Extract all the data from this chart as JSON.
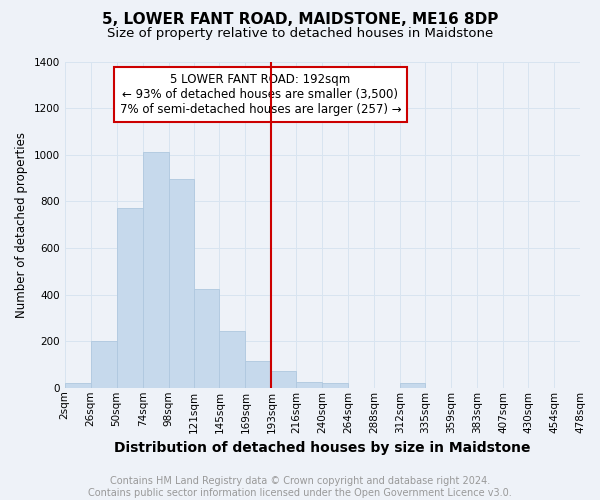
{
  "title": "5, LOWER FANT ROAD, MAIDSTONE, ME16 8DP",
  "subtitle": "Size of property relative to detached houses in Maidstone",
  "xlabel": "Distribution of detached houses by size in Maidstone",
  "ylabel": "Number of detached properties",
  "bin_edges": [
    2,
    26,
    50,
    74,
    98,
    121,
    145,
    169,
    193,
    216,
    240,
    264,
    288,
    312,
    335,
    359,
    383,
    407,
    430,
    454,
    478
  ],
  "bin_labels": [
    "2sqm",
    "26sqm",
    "50sqm",
    "74sqm",
    "98sqm",
    "121sqm",
    "145sqm",
    "169sqm",
    "193sqm",
    "216sqm",
    "240sqm",
    "264sqm",
    "288sqm",
    "312sqm",
    "335sqm",
    "359sqm",
    "383sqm",
    "407sqm",
    "430sqm",
    "454sqm",
    "478sqm"
  ],
  "values": [
    20,
    200,
    770,
    1010,
    895,
    425,
    245,
    115,
    70,
    25,
    20,
    0,
    0,
    20,
    0,
    0,
    0,
    0,
    0,
    0
  ],
  "bar_color": "#c6d9ec",
  "bar_edge_color": "#afc8df",
  "highlight_line_value": 193,
  "highlight_line_color": "#cc0000",
  "annotation_box_text": "5 LOWER FANT ROAD: 192sqm\n← 93% of detached houses are smaller (3,500)\n7% of semi-detached houses are larger (257) →",
  "annotation_box_color": "#cc0000",
  "ylim": [
    0,
    1400
  ],
  "yticks": [
    0,
    200,
    400,
    600,
    800,
    1000,
    1200,
    1400
  ],
  "grid_color": "#d8e4f0",
  "background_color": "#eef2f8",
  "footer_text": "Contains HM Land Registry data © Crown copyright and database right 2024.\nContains public sector information licensed under the Open Government Licence v3.0.",
  "title_fontsize": 11,
  "subtitle_fontsize": 9.5,
  "xlabel_fontsize": 10,
  "ylabel_fontsize": 8.5,
  "annotation_fontsize": 8.5,
  "footer_fontsize": 7,
  "tick_fontsize": 7.5
}
